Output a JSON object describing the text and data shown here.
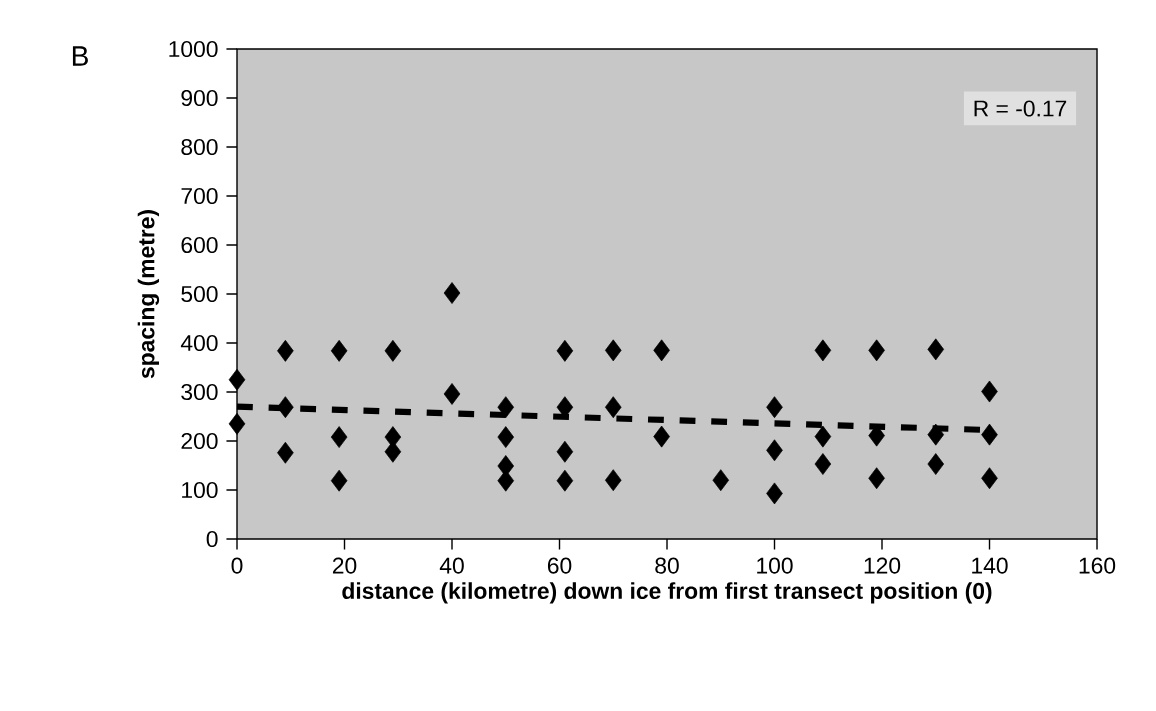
{
  "chart_data": {
    "type": "scatter",
    "xlabel": "distance (kilometre) down ice from first transect position (0)",
    "ylabel": "spacing (metre)",
    "annotations": [
      "B",
      "R = -0.17"
    ],
    "xlim": [
      0,
      160
    ],
    "xticks": [
      0,
      20,
      40,
      60,
      80,
      100,
      120,
      140,
      160
    ],
    "ylim": [
      0,
      1000
    ],
    "yticks": [
      0,
      100,
      200,
      300,
      400,
      500,
      600,
      700,
      800,
      900,
      1000
    ],
    "marker": "diamond",
    "series": [
      {
        "color": "#000000",
        "x": [
          0,
          0,
          9,
          9,
          9,
          19,
          19,
          19,
          29,
          29,
          29,
          40,
          40,
          50,
          50,
          50,
          50,
          61,
          61,
          61,
          61,
          70,
          70,
          70,
          79,
          79,
          90,
          100,
          100,
          100,
          109,
          109,
          109,
          119,
          119,
          119,
          130,
          130,
          130,
          140,
          140,
          140
        ],
        "values": [
          325,
          235,
          384,
          269,
          176,
          384,
          208,
          119,
          384,
          208,
          178,
          502,
          296,
          269,
          208,
          149,
          119,
          384,
          269,
          178,
          119,
          385,
          269,
          120,
          385,
          209,
          120,
          269,
          181,
          93,
          385,
          209,
          153,
          385,
          211,
          124,
          387,
          213,
          153,
          301,
          213,
          124
        ]
      },
      {
        "type": "line",
        "color": "#000000",
        "line_style": "dashed",
        "marker": "none",
        "x": [
          0,
          141
        ],
        "values": [
          270,
          222
        ]
      }
    ]
  }
}
